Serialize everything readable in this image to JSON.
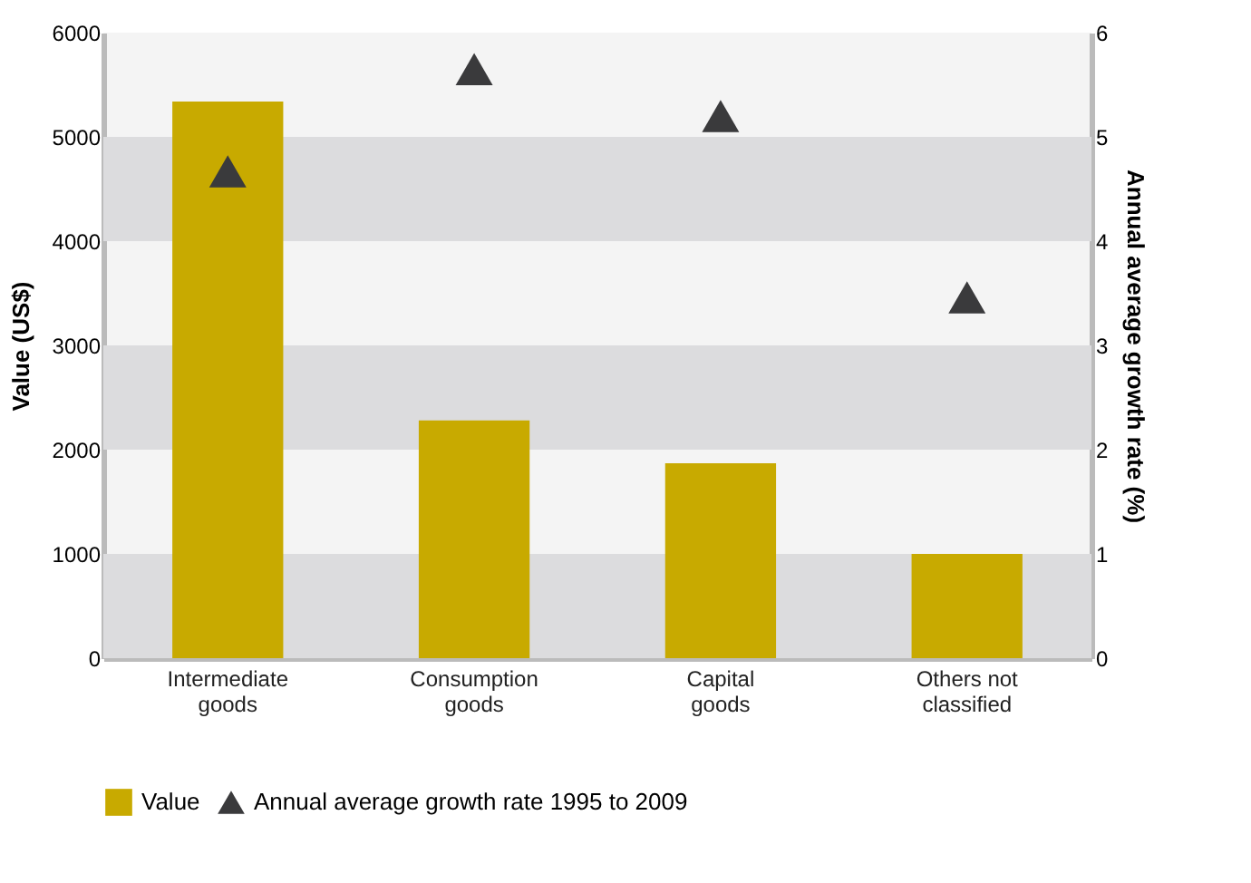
{
  "chart_data": {
    "type": "bar",
    "categories": [
      "Intermediate\ngoods",
      "Consumption\ngoods",
      "Capital\ngoods",
      "Others not\nclassified"
    ],
    "series": [
      {
        "name": "Value",
        "color": "#c8aa00",
        "values": [
          5340,
          2280,
          1870,
          1000
        ]
      },
      {
        "name": "Annual average growth rate 1995 to 2009",
        "type": "scatter",
        "axis": "y2",
        "color": "#3a3a3c",
        "values": [
          4.67,
          5.65,
          5.2,
          3.46
        ]
      }
    ],
    "ylabel": "Value (US$)",
    "y2label": "Annual average growth rate (%)",
    "ylim": [
      0,
      6000
    ],
    "yticks": [
      0,
      1000,
      2000,
      3000,
      4000,
      5000,
      6000
    ],
    "y2lim": [
      0,
      6
    ],
    "y2ticks": [
      0,
      1,
      2,
      3,
      4,
      5,
      6
    ],
    "bands": [
      {
        "axis": "y",
        "from": 0,
        "to": 1000,
        "color": "#dcdcde"
      },
      {
        "axis": "y",
        "from": 2000,
        "to": 3000,
        "color": "#dcdcde"
      },
      {
        "axis": "y",
        "from": 4000,
        "to": 5000,
        "color": "#dcdcde"
      }
    ],
    "marker": "triangle",
    "grid": false,
    "legend": "bottom"
  }
}
